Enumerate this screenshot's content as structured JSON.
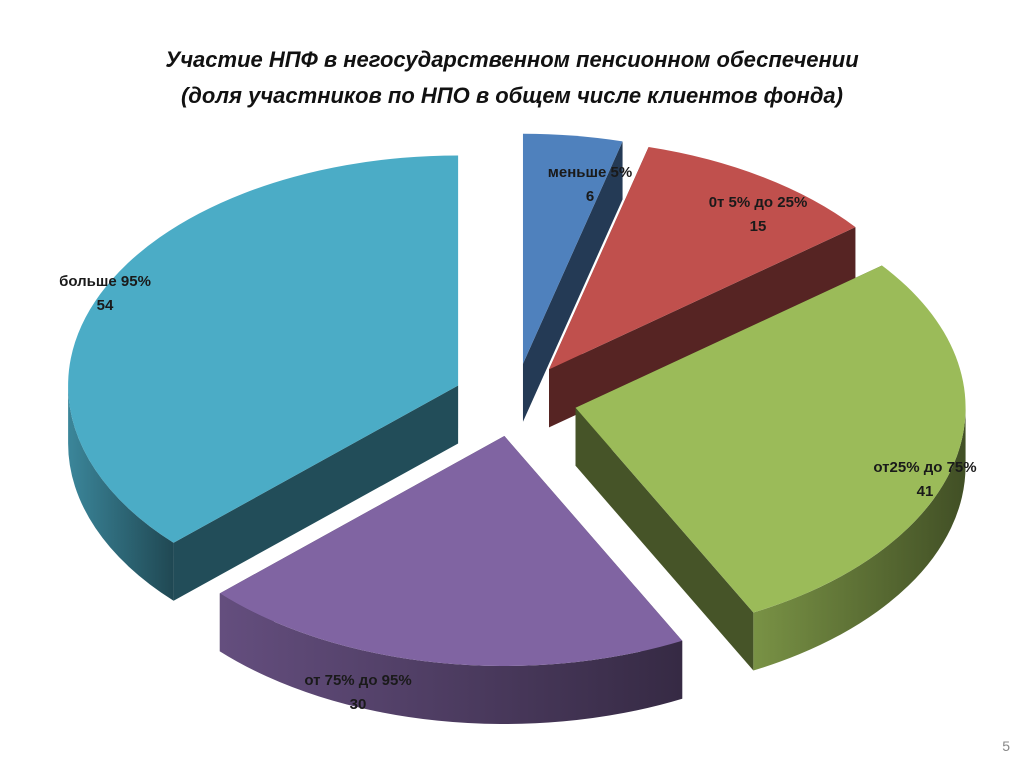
{
  "slide": {
    "title_line1": "Участие НПФ в негосударственном пенсионном обеспечении",
    "title_line2": "(доля участников по НПО в общем числе клиентов фонда)",
    "page_number": "5"
  },
  "chart_data": {
    "type": "pie",
    "style": "3d-exploded",
    "title": "Участие НПФ в негосударственном пенсионном обеспечении",
    "subtitle": "(доля участников по НПО в общем числе клиентов фонда)",
    "slices": [
      {
        "label": "меньше 5%",
        "value": 6,
        "color": "#4F81BD"
      },
      {
        "label": "0т 5% до 25%",
        "value": 15,
        "color": "#C0504D"
      },
      {
        "label": "от25% до 75%",
        "value": 41,
        "color": "#9BBB59"
      },
      {
        "label": "от 75% до 95%",
        "value": 30,
        "color": "#8064A2"
      },
      {
        "label": "больше 95%",
        "value": 54,
        "color": "#4BACC6"
      }
    ]
  }
}
